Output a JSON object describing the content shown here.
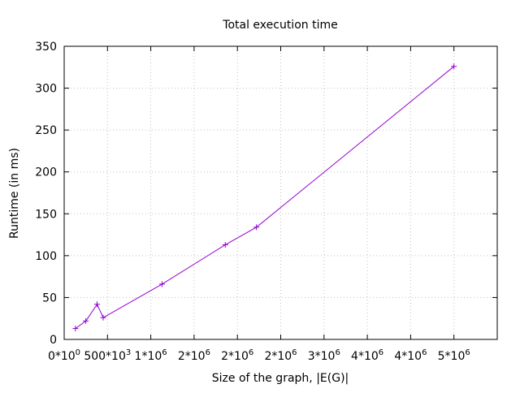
{
  "chart_data": {
    "type": "line",
    "title": "Total execution time",
    "xlabel": "Size of the graph, |E(G)|",
    "ylabel": "Runtime (in ms)",
    "xlim": [
      0,
      5000000
    ],
    "ylim": [
      0,
      350
    ],
    "grid": true,
    "legend": "none",
    "x_ticks": [
      {
        "value": 0,
        "base": "0*10",
        "exp": "0"
      },
      {
        "value": 500000,
        "base": "500*10",
        "exp": "3"
      },
      {
        "value": 1000000,
        "base": "1*10",
        "exp": "6"
      },
      {
        "value": 1500000,
        "base": "2*10",
        "exp": "6"
      },
      {
        "value": 2000000,
        "base": "2*10",
        "exp": "6"
      },
      {
        "value": 2500000,
        "base": "2*10",
        "exp": "6"
      },
      {
        "value": 3000000,
        "base": "3*10",
        "exp": "6"
      },
      {
        "value": 3500000,
        "base": "4*10",
        "exp": "6"
      },
      {
        "value": 4000000,
        "base": "4*10",
        "exp": "6"
      },
      {
        "value": 4500000,
        "base": "5*10",
        "exp": "6"
      }
    ],
    "y_ticks": [
      0,
      50,
      100,
      150,
      200,
      250,
      300,
      350
    ],
    "series": [
      {
        "color": "#9400d3",
        "marker": "plus",
        "x": [
          130000,
          250000,
          380000,
          450000,
          1130000,
          1860000,
          2220000,
          4500000
        ],
        "y": [
          13,
          22,
          42,
          26,
          66,
          113,
          134,
          326
        ]
      }
    ]
  }
}
